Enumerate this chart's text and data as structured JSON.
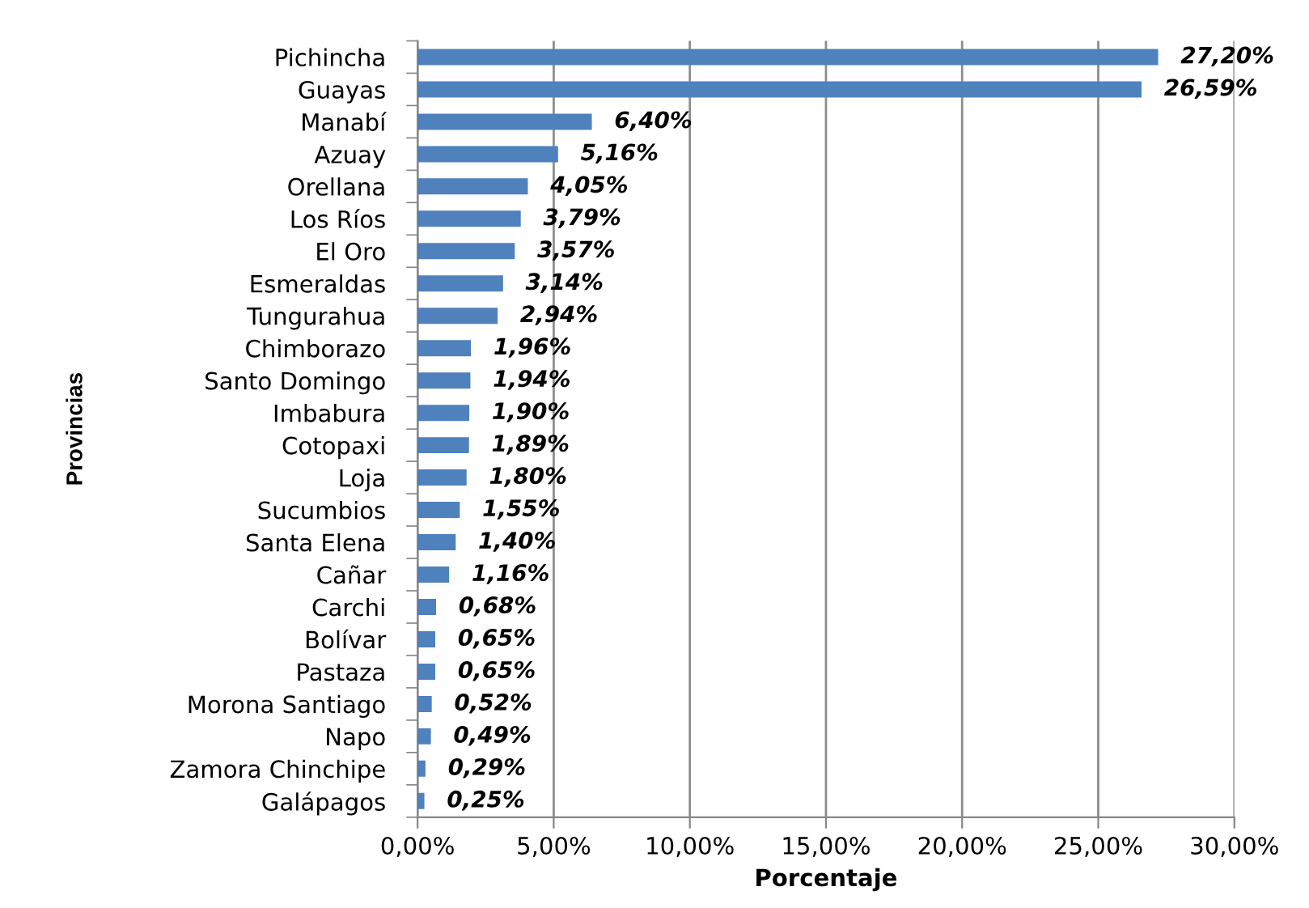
{
  "chart_data": {
    "type": "bar",
    "orientation": "horizontal",
    "categories": [
      "Pichincha",
      "Guayas",
      "Manabí",
      "Azuay",
      "Orellana",
      "Los Ríos",
      "El Oro",
      "Esmeraldas",
      "Tungurahua",
      "Chimborazo",
      "Santo Domingo",
      "Imbabura",
      "Cotopaxi",
      "Loja",
      "Sucumbios",
      "Santa Elena",
      "Cañar",
      "Carchi",
      "Bolívar",
      "Pastaza",
      "Morona Santiago",
      "Napo",
      "Zamora Chinchipe",
      "Galápagos"
    ],
    "values": [
      27.2,
      26.59,
      6.4,
      5.16,
      4.05,
      3.79,
      3.57,
      3.14,
      2.94,
      1.96,
      1.94,
      1.9,
      1.89,
      1.8,
      1.55,
      1.4,
      1.16,
      0.68,
      0.65,
      0.65,
      0.52,
      0.49,
      0.29,
      0.25
    ],
    "value_labels": [
      "27,20%",
      "26,59%",
      "6,40%",
      "5,16%",
      "4,05%",
      "3,79%",
      "3,57%",
      "3,14%",
      "2,94%",
      "1,96%",
      "1,94%",
      "1,90%",
      "1,89%",
      "1,80%",
      "1,55%",
      "1,40%",
      "1,16%",
      "0,68%",
      "0,65%",
      "0,65%",
      "0,52%",
      "0,49%",
      "0,29%",
      "0,25%"
    ],
    "color": "#4f81bd",
    "xlim": [
      0,
      30
    ],
    "xticks": [
      {
        "value": 0,
        "label": "0,00%"
      },
      {
        "value": 5,
        "label": "5,00%"
      },
      {
        "value": 10,
        "label": "10,00%"
      },
      {
        "value": 15,
        "label": "15,00%"
      },
      {
        "value": 20,
        "label": "20,00%"
      },
      {
        "value": 25,
        "label": "25,00%"
      },
      {
        "value": 30,
        "label": "30,00%"
      }
    ],
    "xlabel": "Porcentaje",
    "ylabel": "Provincias",
    "grid": "x"
  }
}
